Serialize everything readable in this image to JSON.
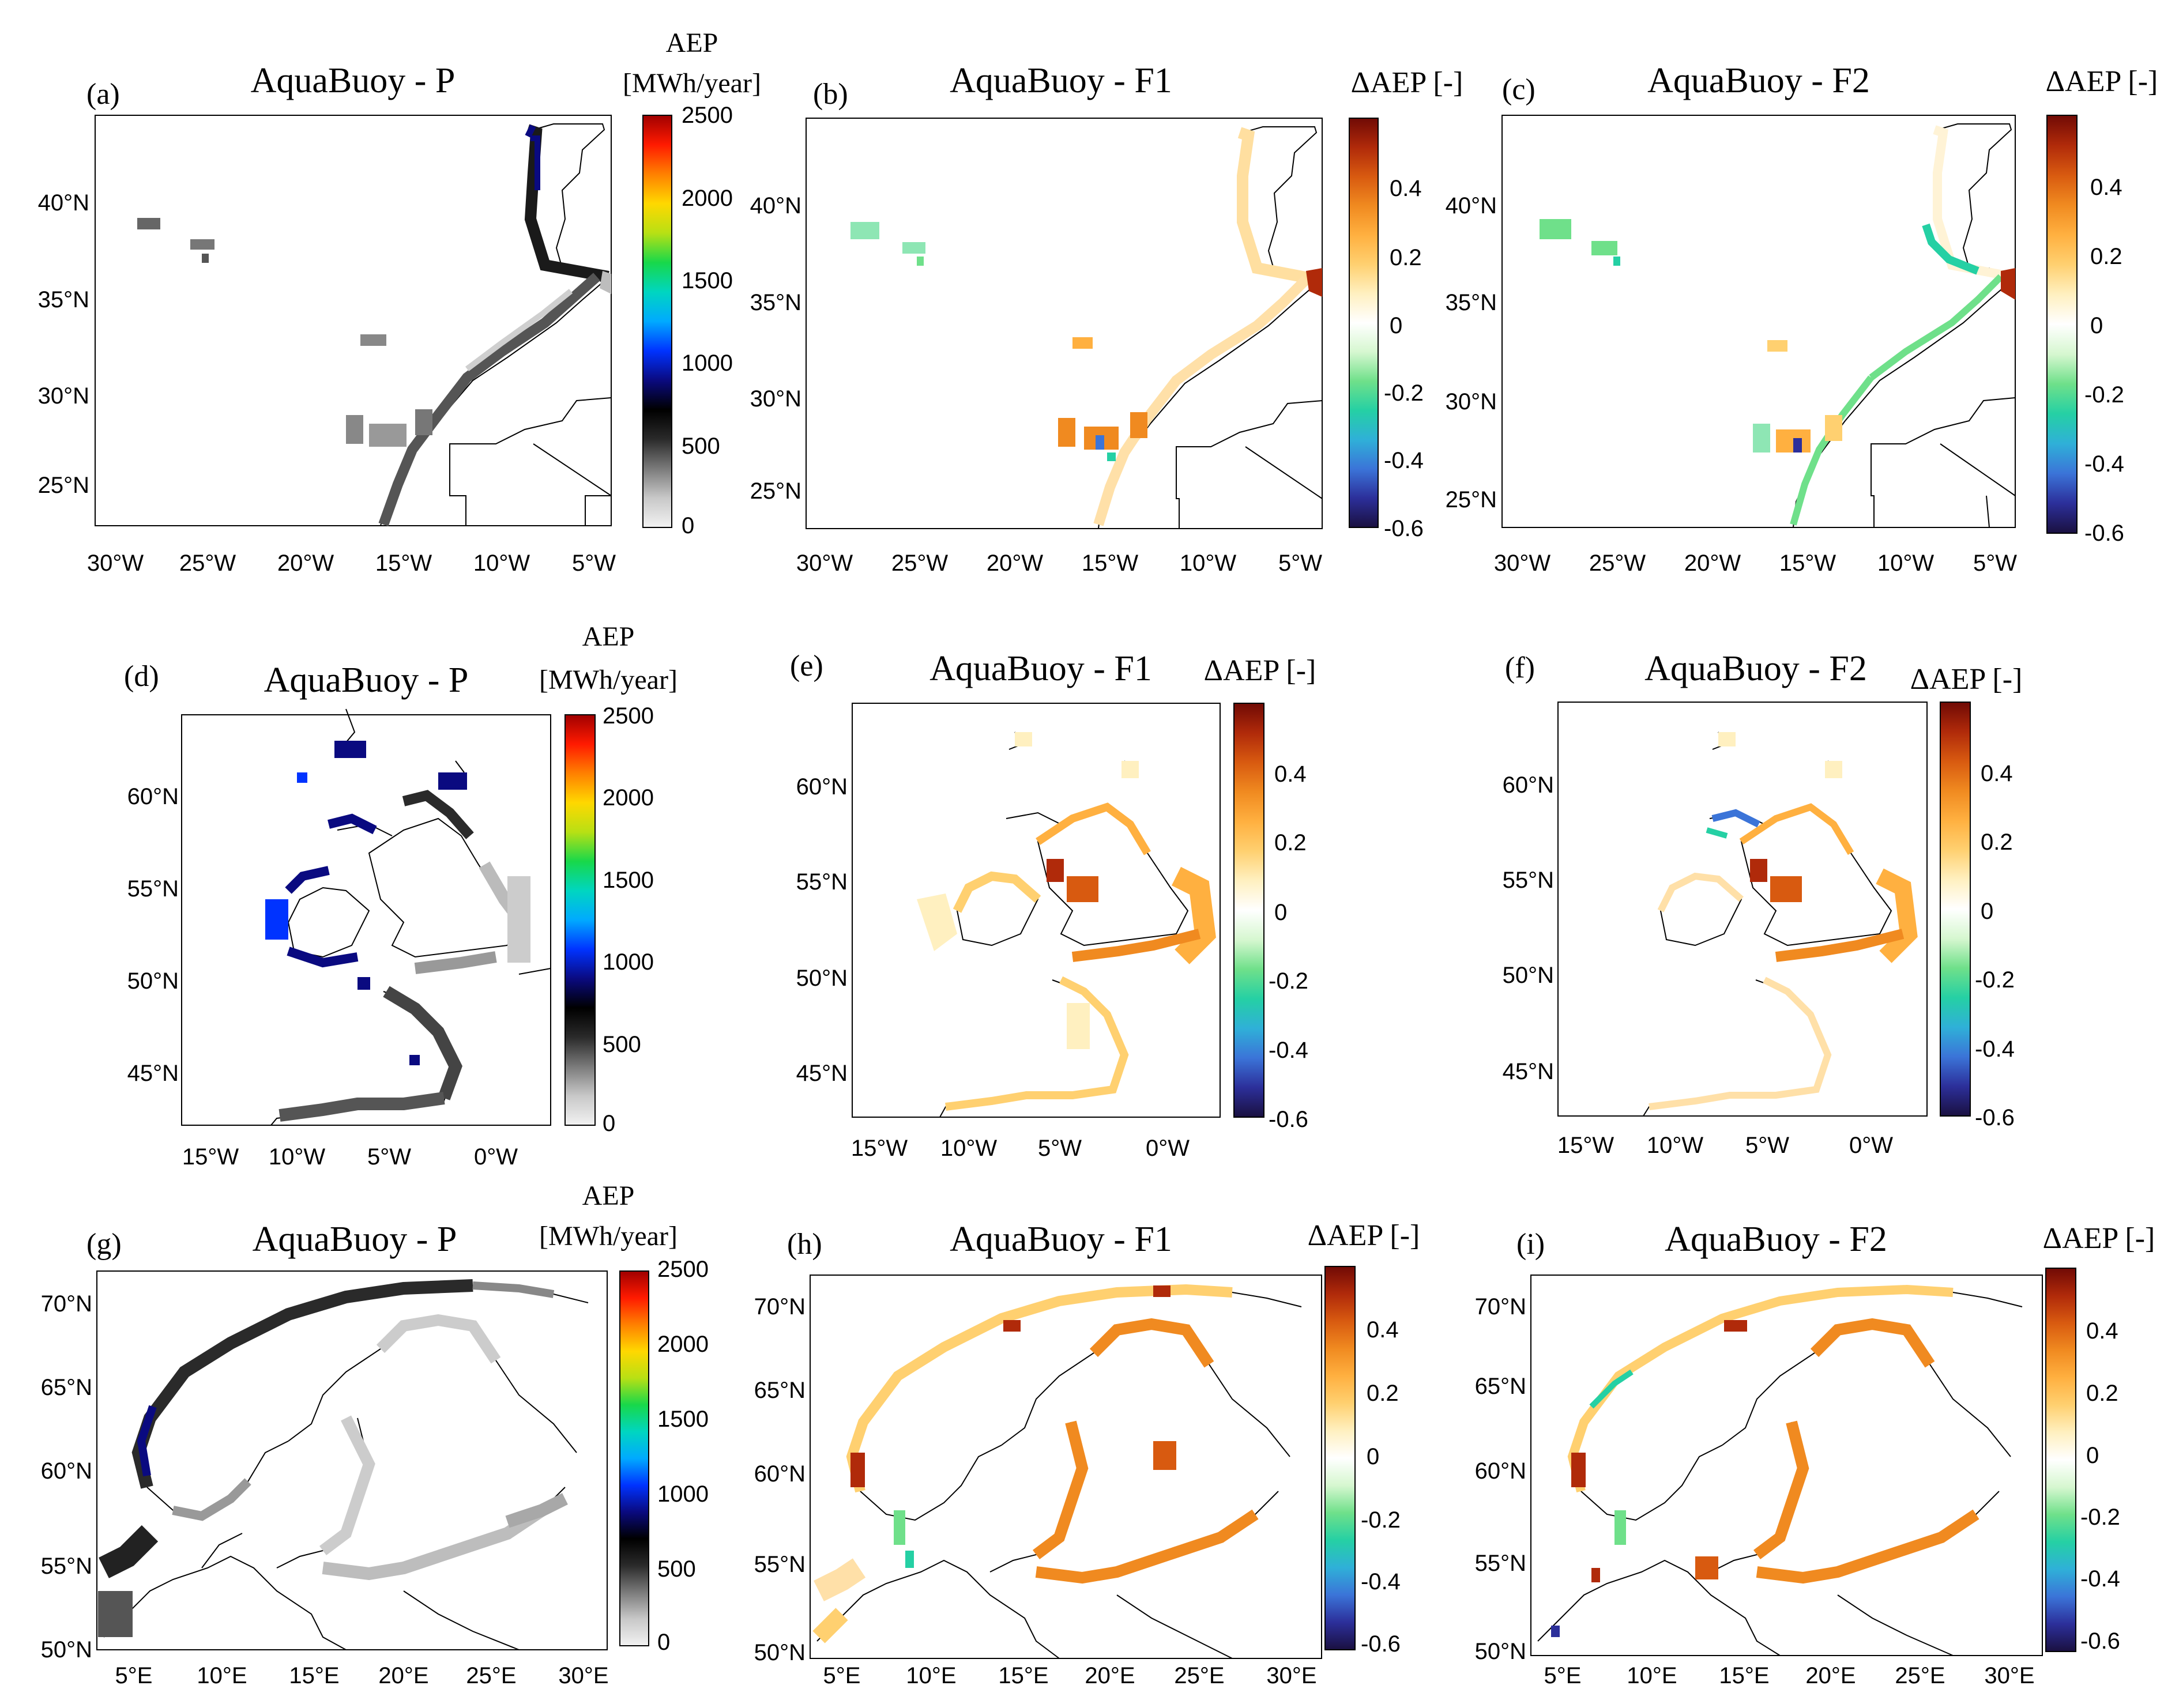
{
  "figure": {
    "colormap_aep": [
      "#f2f2f2",
      "#c8c8c8",
      "#7a7a7a",
      "#2a2a2a",
      "#000000",
      "#0a0a80",
      "#0033ff",
      "#00aaff",
      "#00d6c0",
      "#18d84a",
      "#b8e014",
      "#ffd800",
      "#ff8000",
      "#ff1a00",
      "#a00000"
    ],
    "colormap_delta": [
      "#1a1040",
      "#2c2f9a",
      "#3b74d8",
      "#2fb0d8",
      "#25d0a4",
      "#6fe08a",
      "#d6f7d0",
      "#ffffff",
      "#fff0c0",
      "#ffd070",
      "#ffb040",
      "#f08a20",
      "#d85a10",
      "#b02a0a",
      "#700a05"
    ],
    "land_outline_color": "#000000",
    "panels": [
      {
        "id": "a",
        "letter": "(a)",
        "title": "AquaBuoy - P",
        "kind": "aep",
        "cbar_title": [
          "AEP",
          "[MWh/year]"
        ],
        "cbar_ticks": [
          "2500",
          "2000",
          "1500",
          "1000",
          "500",
          "0"
        ],
        "lat_ticks": [
          "40°N",
          "35°N",
          "30°N",
          "25°N"
        ],
        "lon_ticks": [
          "30°W",
          "25°W",
          "20°W",
          "15°W",
          "10°W",
          "5°W"
        ],
        "region": "Iberia, Macaronesia and NW Africa"
      },
      {
        "id": "b",
        "letter": "(b)",
        "title": "AquaBuoy - F1",
        "kind": "delta",
        "cbar_title": [
          "ΔAEP [-]"
        ],
        "cbar_ticks": [
          "0.4",
          "0.2",
          "0",
          "-0.2",
          "-0.4",
          "-0.6"
        ],
        "lat_ticks": [
          "40°N",
          "35°N",
          "30°N",
          "25°N"
        ],
        "lon_ticks": [
          "30°W",
          "25°W",
          "20°W",
          "15°W",
          "10°W",
          "5°W"
        ],
        "region": "Iberia, Macaronesia and NW Africa"
      },
      {
        "id": "c",
        "letter": "(c)",
        "title": "AquaBuoy - F2",
        "kind": "delta",
        "cbar_title": [
          "ΔAEP [-]"
        ],
        "cbar_ticks": [
          "0.4",
          "0.2",
          "0",
          "-0.2",
          "-0.4",
          "-0.6"
        ],
        "lat_ticks": [
          "40°N",
          "35°N",
          "30°N",
          "25°N"
        ],
        "lon_ticks": [
          "30°W",
          "25°W",
          "20°W",
          "15°W",
          "10°W",
          "5°W"
        ],
        "region": "Iberia, Macaronesia and NW Africa"
      },
      {
        "id": "d",
        "letter": "(d)",
        "title": "AquaBuoy - P",
        "kind": "aep",
        "cbar_title": [
          "AEP",
          "[MWh/year]"
        ],
        "cbar_ticks": [
          "2500",
          "2000",
          "1500",
          "1000",
          "500",
          "0"
        ],
        "lat_ticks": [
          "60°N",
          "55°N",
          "50°N",
          "45°N"
        ],
        "lon_ticks": [
          "15°W",
          "10°W",
          "5°W",
          "0°W"
        ],
        "region": "British Isles and Bay of Biscay"
      },
      {
        "id": "e",
        "letter": "(e)",
        "title": "AquaBuoy - F1",
        "kind": "delta",
        "cbar_title": [
          "ΔAEP [-]"
        ],
        "cbar_ticks": [
          "0.4",
          "0.2",
          "0",
          "-0.2",
          "-0.4",
          "-0.6"
        ],
        "lat_ticks": [
          "60°N",
          "55°N",
          "50°N",
          "45°N"
        ],
        "lon_ticks": [
          "15°W",
          "10°W",
          "5°W",
          "0°W"
        ],
        "region": "British Isles and Bay of Biscay"
      },
      {
        "id": "f",
        "letter": "(f)",
        "title": "AquaBuoy - F2",
        "kind": "delta",
        "cbar_title": [
          "ΔAEP [-]"
        ],
        "cbar_ticks": [
          "0.4",
          "0.2",
          "0",
          "-0.2",
          "-0.4",
          "-0.6"
        ],
        "lat_ticks": [
          "60°N",
          "55°N",
          "50°N",
          "45°N"
        ],
        "lon_ticks": [
          "15°W",
          "10°W",
          "5°W",
          "0°W"
        ],
        "region": "British Isles and Bay of Biscay"
      },
      {
        "id": "g",
        "letter": "(g)",
        "title": "AquaBuoy - P",
        "kind": "aep",
        "cbar_title": [
          "AEP",
          "[MWh/year]"
        ],
        "cbar_ticks": [
          "2500",
          "2000",
          "1500",
          "1000",
          "500",
          "0"
        ],
        "lat_ticks": [
          "70°N",
          "65°N",
          "60°N",
          "55°N",
          "50°N"
        ],
        "lon_ticks": [
          "5°E",
          "10°E",
          "15°E",
          "20°E",
          "25°E",
          "30°E"
        ],
        "region": "Scandinavia and Baltic Sea"
      },
      {
        "id": "h",
        "letter": "(h)",
        "title": "AquaBuoy - F1",
        "kind": "delta",
        "cbar_title": [
          "ΔAEP [-]"
        ],
        "cbar_ticks": [
          "0.4",
          "0.2",
          "0",
          "-0.2",
          "-0.4",
          "-0.6"
        ],
        "lat_ticks": [
          "70°N",
          "65°N",
          "60°N",
          "55°N",
          "50°N"
        ],
        "lon_ticks": [
          "5°E",
          "10°E",
          "15°E",
          "20°E",
          "25°E",
          "30°E"
        ],
        "region": "Scandinavia and Baltic Sea"
      },
      {
        "id": "i",
        "letter": "(i)",
        "title": "AquaBuoy - F2",
        "kind": "delta",
        "cbar_title": [
          "ΔAEP [-]"
        ],
        "cbar_ticks": [
          "0.4",
          "0.2",
          "0",
          "-0.2",
          "-0.4",
          "-0.6"
        ],
        "lat_ticks": [
          "70°N",
          "65°N",
          "60°N",
          "55°N",
          "50°N"
        ],
        "lon_ticks": [
          "5°E",
          "10°E",
          "15°E",
          "20°E",
          "25°E",
          "30°E"
        ],
        "region": "Scandinavia and Baltic Sea"
      }
    ]
  }
}
